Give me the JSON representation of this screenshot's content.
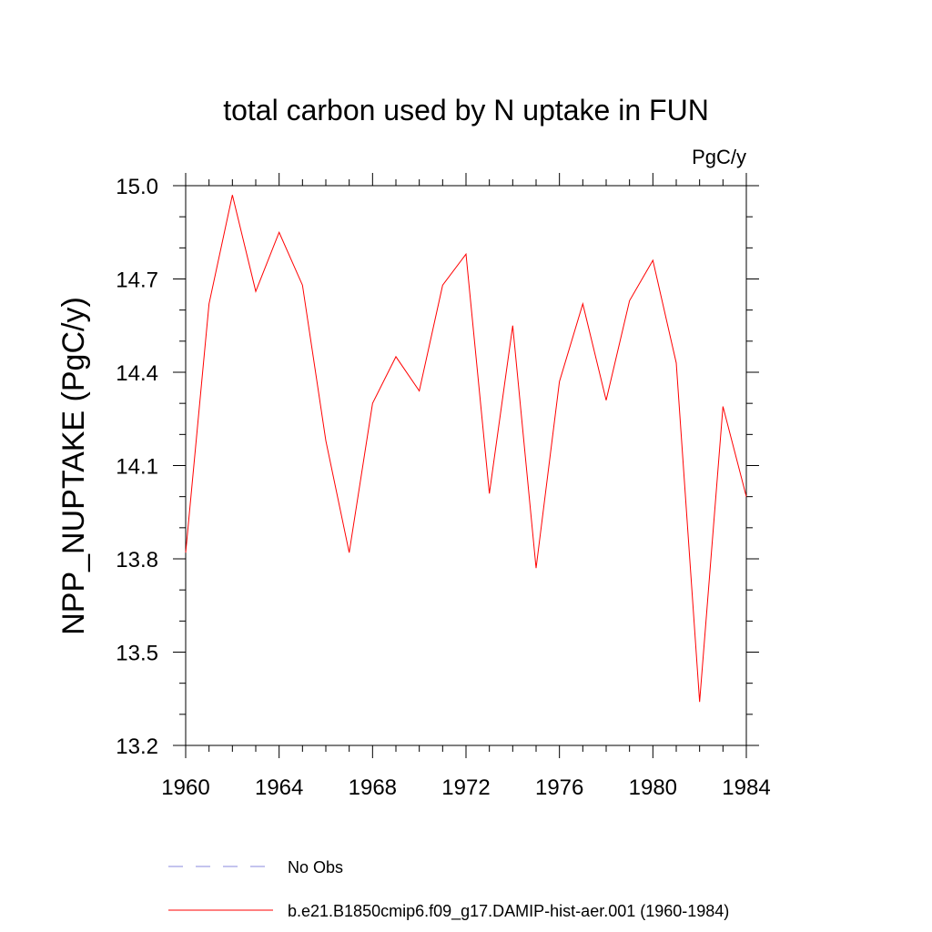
{
  "chart_data": {
    "type": "line",
    "title": "total carbon used by N uptake in FUN",
    "units_label": "PgC/y",
    "xlabel": "",
    "ylabel": "NPP_NUPTAKE  (PgC/y)",
    "xlim": [
      1960,
      1984
    ],
    "ylim": [
      13.2,
      15.0
    ],
    "x_ticks": [
      1960,
      1964,
      1968,
      1972,
      1976,
      1980,
      1984
    ],
    "x_tick_labels": [
      "1960",
      "1964",
      "1968",
      "1972",
      "1976",
      "1980",
      "1984"
    ],
    "y_ticks": [
      13.2,
      13.5,
      13.8,
      14.1,
      14.4,
      14.7,
      15.0
    ],
    "y_tick_labels": [
      "13.2",
      "13.5",
      "13.8",
      "14.1",
      "14.4",
      "14.7",
      "15.0"
    ],
    "grid": false,
    "legend_position": "bottom",
    "x": [
      1960,
      1961,
      1962,
      1963,
      1964,
      1965,
      1966,
      1967,
      1968,
      1969,
      1970,
      1971,
      1972,
      1973,
      1974,
      1975,
      1976,
      1977,
      1978,
      1979,
      1980,
      1981,
      1982,
      1983,
      1984
    ],
    "series": [
      {
        "name": "b.e21.B1850cmip6.f09_g17.DAMIP-hist-aer.001 (1960-1984)",
        "color": "#ff0000",
        "style": "solid",
        "values": [
          13.82,
          14.62,
          14.97,
          14.66,
          14.85,
          14.68,
          14.18,
          13.82,
          14.3,
          14.45,
          14.34,
          14.68,
          14.78,
          14.01,
          14.55,
          13.77,
          14.37,
          14.62,
          14.31,
          14.63,
          14.76,
          14.43,
          13.34,
          14.29,
          14.0
        ]
      }
    ],
    "legend": [
      {
        "label": "No Obs",
        "color": "#8888dd",
        "style": "dashed"
      },
      {
        "label": "b.e21.B1850cmip6.f09_g17.DAMIP-hist-aer.001 (1960-1984)",
        "color": "#ff0000",
        "style": "solid"
      }
    ]
  }
}
